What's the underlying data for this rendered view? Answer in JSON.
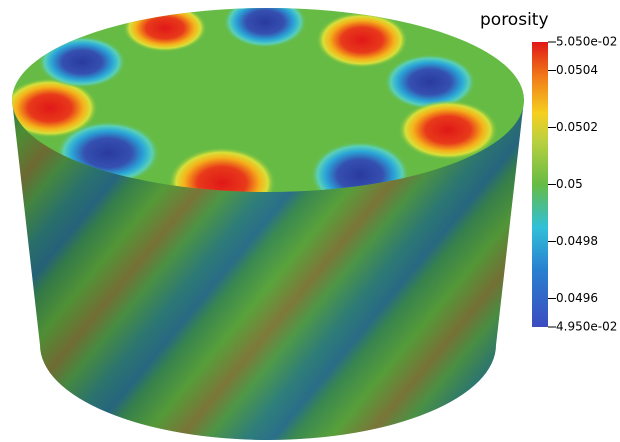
{
  "colorbar": {
    "title": "porosity",
    "range": [
      0.0495,
      0.0505
    ],
    "ticks": [
      {
        "value": 0.0505,
        "label": "5.050e-02"
      },
      0.0504,
      0.0502,
      0.05,
      0.0498,
      0.0496,
      {
        "value": 0.0495,
        "label": "4.950e-02"
      }
    ]
  }
}
